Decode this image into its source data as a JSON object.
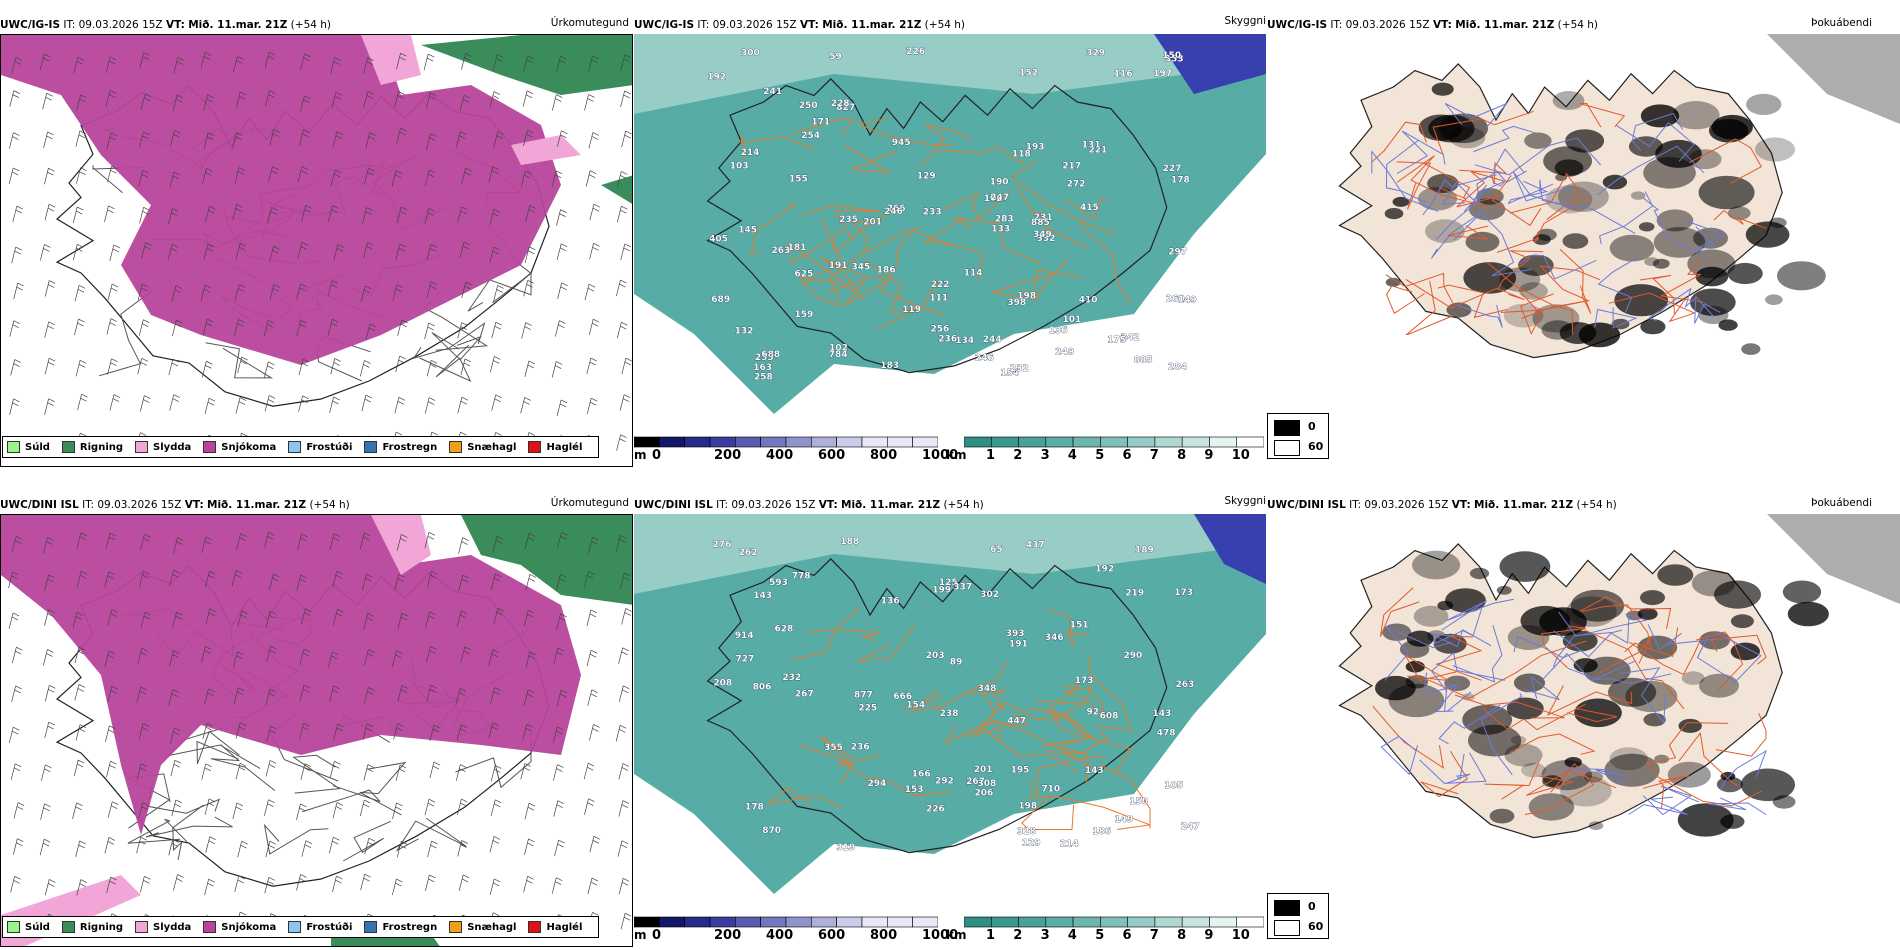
{
  "rows": [
    {
      "model": "UWC/IG-IS",
      "it_label": "IT:",
      "it_value": "09.03.2026 15Z",
      "vt_label": "VT:",
      "vt_value": "Mið. 11.mar. 21Z",
      "lead": "(+54 h)",
      "params": [
        "Úrkomutegund",
        "Skyggni",
        "Þokuábendi"
      ],
      "heights": [
        "183",
        "154",
        "102",
        "136",
        "59",
        "241",
        "235",
        "885",
        "226",
        "945",
        "116",
        "236",
        "266",
        "111",
        "152",
        "102",
        "214",
        "784",
        "201",
        "192",
        "398",
        "353",
        "190",
        "235",
        "221",
        "181",
        "689",
        "625",
        "300",
        "332",
        "233",
        "232",
        "222",
        "197",
        "159",
        "231",
        "260",
        "132",
        "193",
        "242",
        "247",
        "272",
        "149",
        "688",
        "827",
        "198",
        "297",
        "246",
        "250",
        "256",
        "150",
        "227",
        "284",
        "410",
        "191",
        "131",
        "246",
        "129",
        "228",
        "145",
        "175",
        "249",
        "254",
        "415",
        "134",
        "163",
        "283",
        "178",
        "258",
        "118",
        "119",
        "114",
        "171",
        "155",
        "217",
        "349",
        "133",
        "103",
        "186",
        "405",
        "329",
        "244",
        "101",
        "345",
        "885",
        "263"
      ],
      "scale_m_ticks": [
        "m",
        "0",
        "200",
        "400",
        "600",
        "800",
        "1000"
      ],
      "scale_km_ticks": [
        "km",
        "1",
        "2",
        "3",
        "4",
        "5",
        "6",
        "7",
        "8",
        "9",
        "10"
      ],
      "fog_legend": [
        "0",
        "60"
      ]
    },
    {
      "model": "UWC/DINI ISL",
      "it_label": "IT:",
      "it_value": "09.03.2026 15Z",
      "vt_label": "VT:",
      "vt_value": "Mið. 11.mar. 21Z",
      "lead": "(+54 h)",
      "params": [
        "Úrkomutegund",
        "Skyggni",
        "Þokuábendi"
      ],
      "heights": [
        "150",
        "105",
        "201",
        "65",
        "710",
        "346",
        "214",
        "247",
        "778",
        "198",
        "232",
        "877",
        "437",
        "267",
        "166",
        "870",
        "199",
        "219",
        "294",
        "188",
        "173",
        "129",
        "236",
        "262",
        "153",
        "290",
        "125",
        "478",
        "225",
        "206",
        "308",
        "263",
        "393",
        "447",
        "267",
        "276",
        "203",
        "319",
        "914",
        "666",
        "302",
        "806",
        "151",
        "154",
        "226",
        "189",
        "628",
        "292",
        "593",
        "178",
        "238",
        "186",
        "348",
        "608",
        "355",
        "143",
        "192",
        "143",
        "89",
        "92",
        "173",
        "191",
        "143",
        "337",
        "195",
        "727",
        "136",
        "149",
        "208",
        "328"
      ],
      "scale_m_ticks": [
        "m",
        "0",
        "200",
        "400",
        "600",
        "800",
        "1000"
      ],
      "scale_km_ticks": [
        "km",
        "1",
        "2",
        "3",
        "4",
        "5",
        "6",
        "7",
        "8",
        "9",
        "10"
      ],
      "fog_legend": [
        "0",
        "60"
      ]
    }
  ],
  "precip_legend": [
    {
      "label": "Súld",
      "color": "#99f58a"
    },
    {
      "label": "Rigning",
      "color": "#3a8c5b"
    },
    {
      "label": "Slydda",
      "color": "#f2a6d8"
    },
    {
      "label": "Snjókoma",
      "color": "#b8449c"
    },
    {
      "label": "Frostúði",
      "color": "#8cc6ee"
    },
    {
      "label": "Frostregn",
      "color": "#3473b2"
    },
    {
      "label": "Snæhagl",
      "color": "#f0a018"
    },
    {
      "label": "Haglél",
      "color": "#d81414"
    }
  ],
  "colors": {
    "snow": "#b8449c",
    "sleet": "#f2a6d8",
    "rain": "#3a8c5b",
    "drizzle": "#99f58a",
    "vis_teal": "#3a9e96",
    "vis_light": "#9fd0ca",
    "cloud_blue": "#3840b0",
    "roads": "#e8782a",
    "coast": "#222222",
    "land": "#f3e4d8"
  }
}
